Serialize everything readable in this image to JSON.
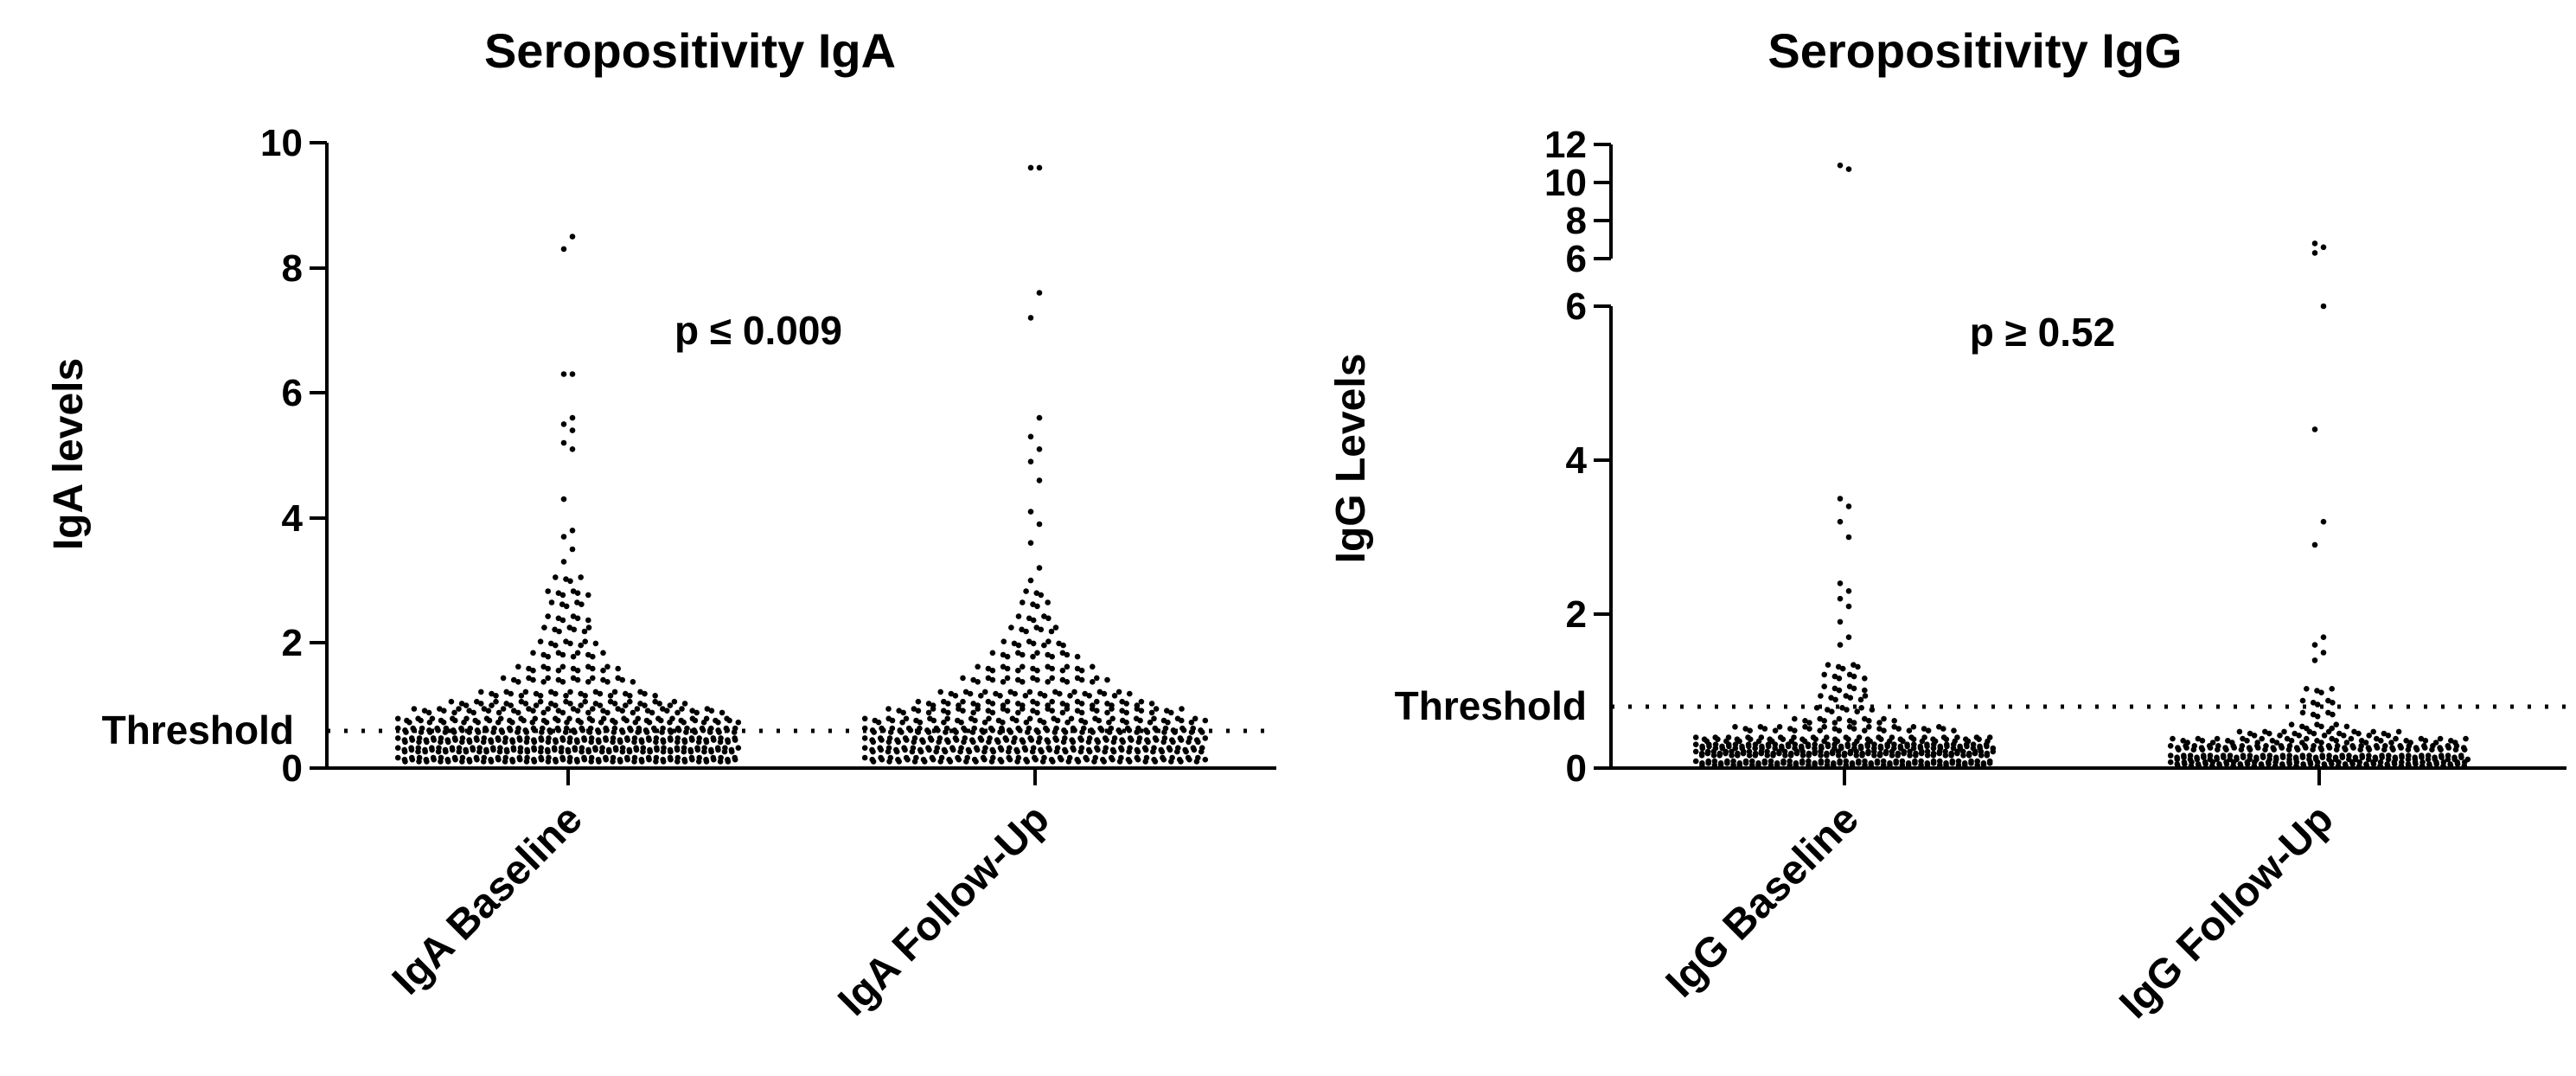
{
  "chart_data": [
    {
      "type": "scatter",
      "subtype": "beeswarm",
      "title": "Seropositivity IgA",
      "ylabel": "IgA levels",
      "xlabel": "",
      "ylim": [
        0,
        10
      ],
      "yticks": [
        "0",
        "2",
        "4",
        "6",
        "8",
        "10"
      ],
      "categories": [
        "IgA Baseline",
        "IgA Follow-Up"
      ],
      "annotation": "p ≤ 0.009",
      "threshold": {
        "label": "Threshold",
        "value": 0.6
      },
      "series": [
        {
          "name": "IgA Baseline",
          "bins": [
            {
              "y": 0.15,
              "n": 95
            },
            {
              "y": 0.3,
              "n": 100
            },
            {
              "y": 0.45,
              "n": 95
            },
            {
              "y": 0.6,
              "n": 85
            },
            {
              "y": 0.75,
              "n": 60
            },
            {
              "y": 0.9,
              "n": 42
            },
            {
              "y": 1.05,
              "n": 32
            },
            {
              "y": 1.2,
              "n": 24
            },
            {
              "y": 1.4,
              "n": 18
            },
            {
              "y": 1.6,
              "n": 14
            },
            {
              "y": 1.8,
              "n": 10
            },
            {
              "y": 2.0,
              "n": 8
            },
            {
              "y": 2.2,
              "n": 7
            },
            {
              "y": 2.4,
              "n": 6
            },
            {
              "y": 2.6,
              "n": 5
            },
            {
              "y": 2.8,
              "n": 6
            },
            {
              "y": 3.0,
              "n": 4
            }
          ],
          "outliers": [
            3.3,
            3.5,
            3.7,
            3.8,
            4.3,
            5.1,
            5.2,
            5.4,
            5.5,
            5.6,
            6.3,
            6.3,
            8.3,
            8.5
          ]
        },
        {
          "name": "IgA Follow-Up",
          "bins": [
            {
              "y": 0.15,
              "n": 80
            },
            {
              "y": 0.3,
              "n": 85
            },
            {
              "y": 0.45,
              "n": 82
            },
            {
              "y": 0.6,
              "n": 75
            },
            {
              "y": 0.75,
              "n": 50
            },
            {
              "y": 0.9,
              "n": 40
            },
            {
              "y": 1.05,
              "n": 32
            },
            {
              "y": 1.2,
              "n": 26
            },
            {
              "y": 1.4,
              "n": 20
            },
            {
              "y": 1.6,
              "n": 16
            },
            {
              "y": 1.8,
              "n": 12
            },
            {
              "y": 2.0,
              "n": 9
            },
            {
              "y": 2.2,
              "n": 7
            },
            {
              "y": 2.4,
              "n": 5
            },
            {
              "y": 2.6,
              "n": 4
            },
            {
              "y": 2.8,
              "n": 3
            }
          ],
          "outliers": [
            3.0,
            3.2,
            3.6,
            3.9,
            4.1,
            4.6,
            4.9,
            5.1,
            5.3,
            5.6,
            7.2,
            7.6,
            9.6,
            9.6
          ]
        }
      ]
    },
    {
      "type": "scatter",
      "subtype": "beeswarm",
      "title": "Seropositivity IgG",
      "ylabel": "IgG Levels",
      "xlabel": "",
      "ylim": [
        0,
        6
      ],
      "ylim_break_upper": [
        6,
        12
      ],
      "yticks": [
        "0",
        "2",
        "4",
        "6"
      ],
      "yticks_upper": [
        "6",
        "8",
        "10",
        "12"
      ],
      "categories": [
        "IgG Baseline",
        "IgG Follow-Up"
      ],
      "annotation": "p ≥ 0.52",
      "threshold": {
        "label": "Threshold",
        "value": 0.8
      },
      "series": [
        {
          "name": "IgG Baseline",
          "bins": [
            {
              "y": 0.08,
              "n": 95
            },
            {
              "y": 0.18,
              "n": 100
            },
            {
              "y": 0.28,
              "n": 90
            },
            {
              "y": 0.38,
              "n": 55
            },
            {
              "y": 0.5,
              "n": 30
            },
            {
              "y": 0.62,
              "n": 14
            },
            {
              "y": 0.75,
              "n": 8
            },
            {
              "y": 0.9,
              "n": 7
            },
            {
              "y": 1.05,
              "n": 6
            },
            {
              "y": 1.2,
              "n": 6
            },
            {
              "y": 1.3,
              "n": 5
            }
          ],
          "outliers": [
            1.6,
            1.7,
            1.9,
            2.1,
            2.2,
            2.3,
            2.4,
            3.0,
            3.2,
            3.4,
            3.5,
            10.7,
            10.9
          ]
        },
        {
          "name": "IgG Follow-Up",
          "bins": [
            {
              "y": 0.06,
              "n": 85
            },
            {
              "y": 0.15,
              "n": 90
            },
            {
              "y": 0.25,
              "n": 75
            },
            {
              "y": 0.35,
              "n": 40
            },
            {
              "y": 0.45,
              "n": 22
            },
            {
              "y": 0.55,
              "n": 8
            },
            {
              "y": 0.7,
              "n": 5
            },
            {
              "y": 0.85,
              "n": 5
            },
            {
              "y": 1.0,
              "n": 4
            }
          ],
          "outliers": [
            1.4,
            1.5,
            1.6,
            1.7,
            2.9,
            3.2,
            4.4,
            6.0,
            6.3,
            6.6,
            6.8
          ]
        }
      ]
    }
  ]
}
